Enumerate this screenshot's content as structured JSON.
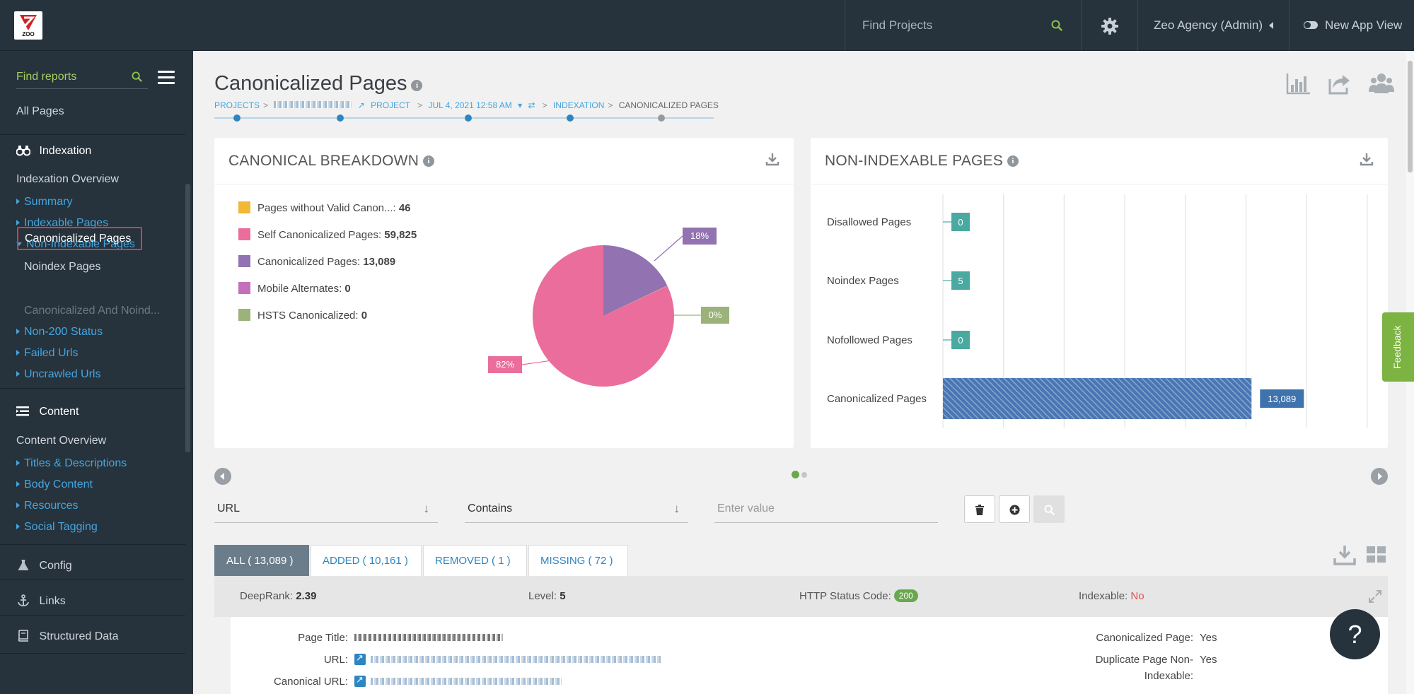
{
  "topbar": {
    "logo_text": "ZOO",
    "search_placeholder": "Find Projects",
    "account_label": "Zeo Agency (Admin)",
    "new_view_label": "New App View"
  },
  "sidebar": {
    "search_placeholder": "Find reports",
    "all_pages": "All Pages",
    "indexation": {
      "title": "Indexation",
      "overview": "Indexation Overview",
      "summary": "Summary",
      "indexable": "Indexable Pages",
      "non_indexable": "Non-Indexable Pages",
      "noindex": "Noindex Pages",
      "canonicalized": "Canonicalized Pages",
      "canon_noindex": "Canonicalized And Noind...",
      "non200": "Non-200 Status",
      "failed": "Failed Urls",
      "uncrawled": "Uncrawled Urls"
    },
    "content": {
      "title": "Content",
      "overview": "Content Overview",
      "titles": "Titles & Descriptions",
      "body": "Body Content",
      "resources": "Resources",
      "social": "Social Tagging"
    },
    "config": "Config",
    "links": "Links",
    "structured": "Structured Data"
  },
  "page": {
    "title": "Canonicalized Pages",
    "info_glyph": "i",
    "breadcrumb": {
      "projects": "PROJECTS",
      "project": "PROJECT",
      "date": "JUL 4, 2021 12:58 AM",
      "indexation": "INDEXATION",
      "current": "CANONICALIZED PAGES"
    }
  },
  "canonical_panel": {
    "title": "CANONICAL BREAKDOWN",
    "legend": [
      {
        "label": "Pages without Valid Canon...:",
        "value": "46",
        "color": "#f1b836"
      },
      {
        "label": "Self Canonicalized Pages:",
        "value": "59,825",
        "color": "#ea6d9b"
      },
      {
        "label": "Canonicalized Pages:",
        "value": "13,089",
        "color": "#9272b0"
      },
      {
        "label": "Mobile Alternates:",
        "value": "0",
        "color": "#c46fbb"
      },
      {
        "label": "HSTS Canonicalized:",
        "value": "0",
        "color": "#9bb37a"
      }
    ],
    "pie_labels": {
      "self": "82%",
      "canonicalized": "18%",
      "other": "0%"
    }
  },
  "noindex_panel": {
    "title": "NON-INDEXABLE PAGES",
    "rows": [
      {
        "label": "Disallowed Pages",
        "value": "0"
      },
      {
        "label": "Noindex Pages",
        "value": "5"
      },
      {
        "label": "Nofollowed Pages",
        "value": "0"
      },
      {
        "label": "Canonicalized Pages",
        "value": "13,089"
      }
    ]
  },
  "chart_data": [
    {
      "type": "pie",
      "title": "CANONICAL BREAKDOWN",
      "categories": [
        "Pages without Valid Canon...",
        "Self Canonicalized Pages",
        "Canonicalized Pages",
        "Mobile Alternates",
        "HSTS Canonicalized"
      ],
      "values": [
        46,
        59825,
        13089,
        0,
        0
      ],
      "labels": [
        "0%",
        "82%",
        "18%"
      ]
    },
    {
      "type": "bar",
      "orientation": "horizontal",
      "title": "NON-INDEXABLE PAGES",
      "categories": [
        "Disallowed Pages",
        "Noindex Pages",
        "Nofollowed Pages",
        "Canonicalized Pages"
      ],
      "values": [
        0,
        5,
        0,
        13089
      ],
      "grid": true
    }
  ],
  "filter": {
    "field": "URL",
    "operator": "Contains",
    "value_placeholder": "Enter value"
  },
  "tabs": [
    {
      "label": "ALL ( 13,089 )"
    },
    {
      "label": "ADDED ( 10,161 )"
    },
    {
      "label": "REMOVED ( 1 )"
    },
    {
      "label": "MISSING ( 72 )"
    }
  ],
  "result": {
    "deeprank_label": "DeepRank:",
    "deeprank_value": "2.39",
    "level_label": "Level:",
    "level_value": "5",
    "status_label": "HTTP Status Code:",
    "status_value": "200",
    "indexable_label": "Indexable:",
    "indexable_value": "No",
    "page_title_label": "Page Title:",
    "url_label": "URL:",
    "canonical_url_label": "Canonical URL:",
    "canonicalized_page_label": "Canonicalized Page:",
    "canonicalized_page_value": "Yes",
    "dup_label_1": "Duplicate Page Non-",
    "dup_label_2": "Indexable:",
    "dup_value": "Yes"
  },
  "feedback_label": "Feedback",
  "help_label": "?"
}
